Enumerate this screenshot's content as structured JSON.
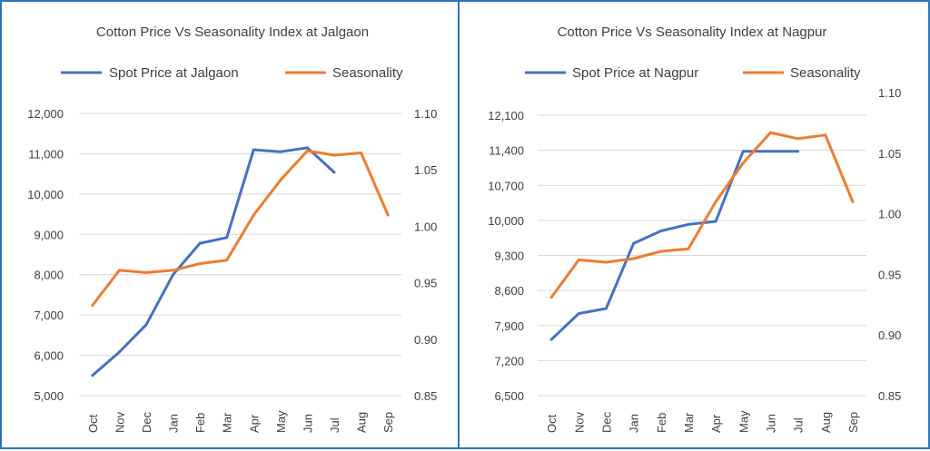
{
  "colors": {
    "price": "#4472c4",
    "seasonality": "#ed7d31",
    "border": "#2e74b5"
  },
  "chart_data": [
    {
      "type": "line",
      "title": "Cotton Price Vs Seasonality Index at Jalgaon",
      "categories": [
        "Oct",
        "Nov",
        "Dec",
        "Jan",
        "Feb",
        "Mar",
        "Apr",
        "May",
        "Jun",
        "Jul",
        "Aug",
        "Sep"
      ],
      "series": [
        {
          "name": "Spot Price at Jalgaon",
          "axis": "left",
          "values": [
            5500,
            6080,
            6760,
            8000,
            8780,
            8920,
            11100,
            11050,
            11150,
            10540,
            null,
            null
          ]
        },
        {
          "name": "Seasonality",
          "axis": "right",
          "values": [
            0.93,
            0.961,
            0.959,
            0.961,
            0.967,
            0.97,
            1.01,
            1.041,
            1.067,
            1.063,
            1.065,
            1.01
          ]
        }
      ],
      "left_axis": {
        "min": 5000,
        "max": 12000,
        "ticks": [
          "5,000",
          "6,000",
          "7,000",
          "8,000",
          "9,000",
          "10,000",
          "11,000",
          "12,000"
        ]
      },
      "right_axis": {
        "min": 0.85,
        "max": 1.1,
        "ticks": [
          "0.85",
          "0.90",
          "0.95",
          "1.00",
          "1.05",
          "1.10"
        ]
      },
      "legend": "top"
    },
    {
      "type": "line",
      "title": "Cotton Price Vs Seasonality Index at Nagpur",
      "categories": [
        "Oct",
        "Nov",
        "Dec",
        "Jan",
        "Feb",
        "Mar",
        "Apr",
        "May",
        "Jun",
        "Jul",
        "Aug",
        "Sep"
      ],
      "series": [
        {
          "name": "Spot Price at Nagpur",
          "axis": "left",
          "values": [
            7620,
            8140,
            8240,
            9540,
            9790,
            9920,
            9980,
            11380,
            11380,
            11380,
            null,
            null
          ]
        },
        {
          "name": "Seasonality",
          "axis": "right",
          "values": [
            0.931,
            0.962,
            0.96,
            0.963,
            0.969,
            0.971,
            1.01,
            1.042,
            1.067,
            1.062,
            1.065,
            1.01
          ]
        }
      ],
      "left_axis": {
        "min": 6500,
        "max": 12100,
        "ticks": [
          "6,500",
          "7,200",
          "7,900",
          "8,600",
          "9,300",
          "10,000",
          "10,700",
          "11,400",
          "12,100"
        ]
      },
      "right_axis": {
        "min": 0.85,
        "max": 1.1,
        "ticks": [
          "0.85",
          "0.90",
          "0.95",
          "1.00",
          "1.05",
          "1.10"
        ]
      },
      "legend": "top"
    }
  ]
}
